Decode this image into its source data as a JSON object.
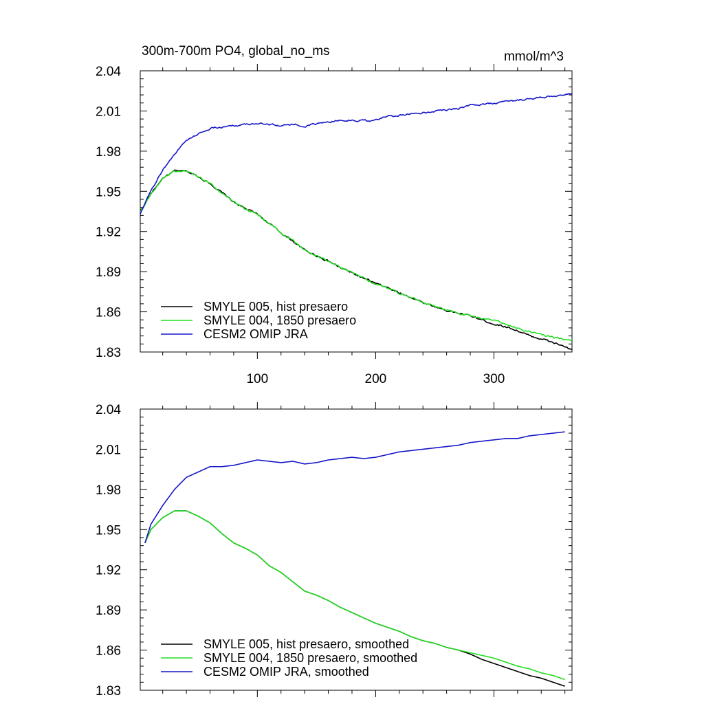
{
  "chart_data": [
    {
      "type": "line",
      "title": "300m-700m PO4, global_no_ms",
      "units": "mmol/m^3",
      "xlabel": "",
      "ylabel": "",
      "xlim": [
        1,
        366
      ],
      "ylim": [
        1.83,
        2.04
      ],
      "x_ticks": [
        100,
        200,
        300
      ],
      "y_ticks": [
        1.83,
        1.86,
        1.89,
        1.92,
        1.95,
        1.98,
        2.01,
        2.04
      ],
      "y_tick_labels": [
        "1.83",
        "1.86",
        "1.89",
        "1.92",
        "1.95",
        "1.98",
        "2.01",
        "2.04"
      ],
      "grid": false,
      "legend": "bottom-left",
      "noise": 0.0012,
      "series": [
        {
          "name": "SMYLE 005, hist presaero",
          "color": "#000000",
          "x": [
            1,
            10,
            20,
            30,
            40,
            50,
            60,
            70,
            80,
            90,
            100,
            110,
            120,
            130,
            140,
            150,
            160,
            170,
            180,
            190,
            200,
            210,
            220,
            230,
            240,
            250,
            260,
            270,
            280,
            290,
            300,
            310,
            320,
            330,
            340,
            350,
            360,
            366
          ],
          "values": [
            1.935,
            1.948,
            1.96,
            1.965,
            1.965,
            1.961,
            1.956,
            1.949,
            1.942,
            1.937,
            1.933,
            1.926,
            1.919,
            1.913,
            1.906,
            1.902,
            1.898,
            1.893,
            1.889,
            1.885,
            1.881,
            1.878,
            1.874,
            1.871,
            1.867,
            1.864,
            1.861,
            1.859,
            1.857,
            1.854,
            1.851,
            1.849,
            1.846,
            1.842,
            1.84,
            1.837,
            1.834,
            1.831
          ]
        },
        {
          "name": "SMYLE 004, 1850 presaero",
          "color": "#22dd22",
          "x": [
            1,
            10,
            20,
            30,
            40,
            50,
            60,
            70,
            80,
            90,
            100,
            110,
            120,
            130,
            140,
            150,
            160,
            170,
            180,
            190,
            200,
            210,
            220,
            230,
            240,
            250,
            260,
            270,
            280,
            290,
            300,
            310,
            320,
            330,
            340,
            350,
            360,
            366
          ],
          "values": [
            1.935,
            1.948,
            1.96,
            1.965,
            1.965,
            1.961,
            1.956,
            1.949,
            1.942,
            1.937,
            1.933,
            1.926,
            1.919,
            1.913,
            1.906,
            1.902,
            1.898,
            1.893,
            1.889,
            1.885,
            1.881,
            1.878,
            1.874,
            1.871,
            1.867,
            1.864,
            1.861,
            1.859,
            1.857,
            1.855,
            1.853,
            1.851,
            1.848,
            1.845,
            1.843,
            1.841,
            1.839,
            1.838
          ]
        },
        {
          "name": "CESM2 OMIP JRA",
          "color": "#1515c8",
          "x": [
            1,
            10,
            20,
            30,
            40,
            50,
            60,
            70,
            80,
            90,
            100,
            110,
            120,
            130,
            140,
            150,
            160,
            170,
            180,
            190,
            200,
            210,
            220,
            230,
            240,
            250,
            260,
            270,
            280,
            290,
            300,
            310,
            320,
            330,
            340,
            350,
            360,
            366
          ],
          "values": [
            1.933,
            1.95,
            1.966,
            1.978,
            1.988,
            1.993,
            1.997,
            1.998,
            1.999,
            2.0,
            2.001,
            2.0,
            1.999,
            2.0,
            1.999,
            2.0,
            2.002,
            2.003,
            2.003,
            2.003,
            2.003,
            2.006,
            2.007,
            2.008,
            2.009,
            2.01,
            2.011,
            2.012,
            2.014,
            2.015,
            2.016,
            2.017,
            2.018,
            2.019,
            2.02,
            2.021,
            2.022,
            2.023
          ]
        }
      ]
    },
    {
      "type": "line",
      "title": "",
      "xlabel": "",
      "ylabel": "",
      "xlim": [
        1,
        366
      ],
      "ylim": [
        1.83,
        2.04
      ],
      "x_ticks": [
        100,
        200,
        300
      ],
      "y_ticks": [
        1.83,
        1.86,
        1.89,
        1.92,
        1.95,
        1.98,
        2.01,
        2.04
      ],
      "y_tick_labels": [
        "1.83",
        "1.86",
        "1.89",
        "1.92",
        "1.95",
        "1.98",
        "2.01",
        "2.04"
      ],
      "grid": false,
      "legend": "bottom-left",
      "noise": 0,
      "series": [
        {
          "name": "SMYLE 005, hist presaero, smoothed",
          "color": "#000000",
          "x": [
            5,
            10,
            20,
            30,
            40,
            50,
            60,
            70,
            80,
            90,
            100,
            110,
            120,
            130,
            140,
            150,
            160,
            170,
            180,
            190,
            200,
            210,
            220,
            230,
            240,
            250,
            260,
            270,
            280,
            290,
            300,
            310,
            320,
            330,
            340,
            350,
            360
          ],
          "values": [
            1.94,
            1.95,
            1.959,
            1.964,
            1.964,
            1.96,
            1.955,
            1.947,
            1.94,
            1.936,
            1.931,
            1.923,
            1.918,
            1.911,
            1.904,
            1.901,
            1.897,
            1.892,
            1.888,
            1.884,
            1.88,
            1.877,
            1.874,
            1.87,
            1.867,
            1.865,
            1.862,
            1.86,
            1.857,
            1.853,
            1.85,
            1.847,
            1.844,
            1.841,
            1.839,
            1.836,
            1.833
          ]
        },
        {
          "name": "SMYLE 004, 1850 presaero, smoothed",
          "color": "#22dd22",
          "x": [
            5,
            10,
            20,
            30,
            40,
            50,
            60,
            70,
            80,
            90,
            100,
            110,
            120,
            130,
            140,
            150,
            160,
            170,
            180,
            190,
            200,
            210,
            220,
            230,
            240,
            250,
            260,
            270,
            280,
            290,
            300,
            310,
            320,
            330,
            340,
            350,
            360
          ],
          "values": [
            1.94,
            1.95,
            1.959,
            1.964,
            1.964,
            1.96,
            1.955,
            1.947,
            1.94,
            1.936,
            1.931,
            1.923,
            1.918,
            1.911,
            1.904,
            1.901,
            1.897,
            1.892,
            1.888,
            1.884,
            1.88,
            1.877,
            1.874,
            1.87,
            1.867,
            1.865,
            1.862,
            1.86,
            1.858,
            1.856,
            1.854,
            1.851,
            1.848,
            1.846,
            1.843,
            1.841,
            1.838
          ]
        },
        {
          "name": "CESM2 OMIP JRA, smoothed",
          "color": "#1515c8",
          "x": [
            5,
            10,
            20,
            30,
            40,
            50,
            60,
            70,
            80,
            90,
            100,
            110,
            120,
            130,
            140,
            150,
            160,
            170,
            180,
            190,
            200,
            210,
            220,
            230,
            240,
            250,
            260,
            270,
            280,
            290,
            300,
            310,
            320,
            330,
            340,
            350,
            360
          ],
          "values": [
            1.94,
            1.954,
            1.968,
            1.98,
            1.989,
            1.993,
            1.997,
            1.997,
            1.998,
            2.0,
            2.002,
            2.001,
            2.0,
            2.001,
            1.999,
            2.0,
            2.002,
            2.003,
            2.004,
            2.003,
            2.004,
            2.006,
            2.008,
            2.009,
            2.01,
            2.011,
            2.012,
            2.013,
            2.015,
            2.016,
            2.017,
            2.018,
            2.018,
            2.02,
            2.021,
            2.022,
            2.023
          ]
        }
      ]
    }
  ]
}
